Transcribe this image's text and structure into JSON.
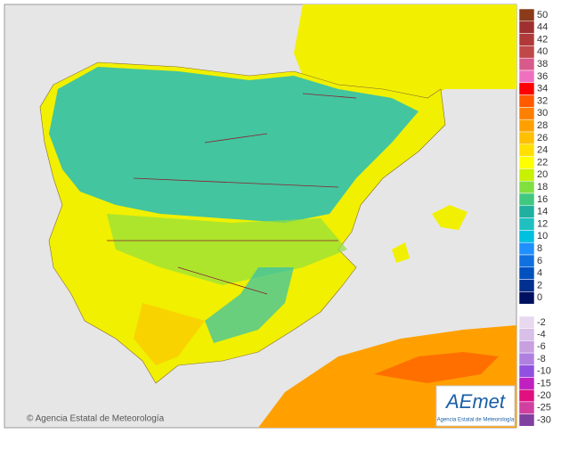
{
  "copyright": "© Agencia Estatal de Meteorología",
  "logo": {
    "mark": "AEmet",
    "caption": "Agencia Estatal de Meteorología"
  },
  "legend": {
    "positive": [
      {
        "label": 50,
        "color": "#8b3a1a"
      },
      {
        "label": 44,
        "color": "#a03030"
      },
      {
        "label": 42,
        "color": "#b03a3a"
      },
      {
        "label": 40,
        "color": "#c04848"
      },
      {
        "label": 38,
        "color": "#d85a8a"
      },
      {
        "label": 36,
        "color": "#f070c0"
      },
      {
        "label": 34,
        "color": "#ff0000"
      },
      {
        "label": 32,
        "color": "#ff5a00"
      },
      {
        "label": 30,
        "color": "#ff7f00"
      },
      {
        "label": 28,
        "color": "#ffa000"
      },
      {
        "label": 26,
        "color": "#ffc000"
      },
      {
        "label": 24,
        "color": "#ffe000"
      },
      {
        "label": 22,
        "color": "#ffff00"
      },
      {
        "label": 20,
        "color": "#c8f000"
      },
      {
        "label": 18,
        "color": "#80e040"
      },
      {
        "label": 16,
        "color": "#40c880"
      },
      {
        "label": 14,
        "color": "#20b0a0"
      },
      {
        "label": 12,
        "color": "#20c0c0"
      },
      {
        "label": 10,
        "color": "#00c0e0"
      },
      {
        "label": 8,
        "color": "#1e90ff"
      },
      {
        "label": 6,
        "color": "#1070e0"
      },
      {
        "label": 4,
        "color": "#0050c0"
      },
      {
        "label": 2,
        "color": "#003090"
      },
      {
        "label": 0,
        "color": "#001060"
      }
    ],
    "negative": [
      {
        "label": -2,
        "color": "#e8d8f0"
      },
      {
        "label": -4,
        "color": "#d8c0e8"
      },
      {
        "label": -6,
        "color": "#c8a0e0"
      },
      {
        "label": -8,
        "color": "#b080e0"
      },
      {
        "label": -10,
        "color": "#9050e0"
      },
      {
        "label": -15,
        "color": "#c020c0"
      },
      {
        "label": -20,
        "color": "#e01080"
      },
      {
        "label": -25,
        "color": "#d040a0"
      },
      {
        "label": -30,
        "color": "#8040a0"
      }
    ]
  }
}
